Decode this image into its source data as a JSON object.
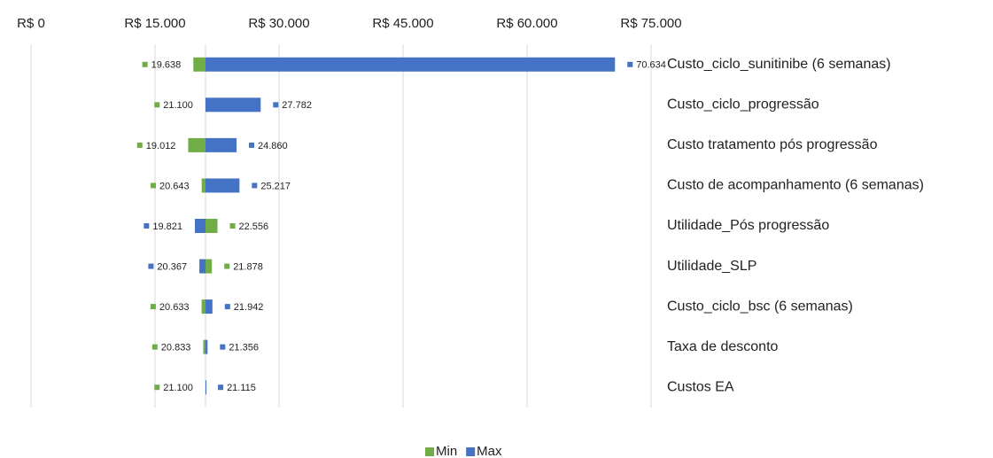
{
  "chart_data": {
    "type": "tornado",
    "categories": [
      "Custo_ciclo_sunitinibe (6 semanas)",
      "Custo_ciclo_progressão",
      "Custo tratamento pós progressão",
      "Custo de acompanhamento (6 semanas)",
      "Utilidade_Pós progressão",
      "Utilidade_SLP",
      "Custo_ciclo_bsc (6 semanas)",
      "Taxa de desconto",
      "Custos EA"
    ],
    "base_value": 21108,
    "series": [
      {
        "name": "Min",
        "color": "#70ad47",
        "values": [
          19638,
          21100,
          19012,
          20643,
          22556,
          21878,
          20633,
          20833,
          21100
        ],
        "value_labels": [
          "19.638",
          "21.100",
          "19.012",
          "20.643",
          "22.556",
          "21.878",
          "20.633",
          "20.833",
          "21.100"
        ]
      },
      {
        "name": "Max",
        "color": "#4472c4",
        "values": [
          70634,
          27782,
          24860,
          25217,
          19821,
          20367,
          21942,
          21356,
          21115
        ],
        "value_labels": [
          "70.634",
          "27.782",
          "24.860",
          "25.217",
          "19.821",
          "20.367",
          "21.942",
          "21.356",
          "21.115"
        ]
      }
    ],
    "xlim": [
      0,
      75000
    ],
    "xticks": [
      {
        "value": 0,
        "label": "R$ 0"
      },
      {
        "value": 15000,
        "label": "R$ 15.000"
      },
      {
        "value": 30000,
        "label": "R$ 30.000"
      },
      {
        "value": 45000,
        "label": "R$ 45.000"
      },
      {
        "value": 60000,
        "label": "R$ 60.000"
      },
      {
        "value": 75000,
        "label": "R$ 75.000"
      }
    ],
    "grid": true,
    "legend": "bottom"
  }
}
